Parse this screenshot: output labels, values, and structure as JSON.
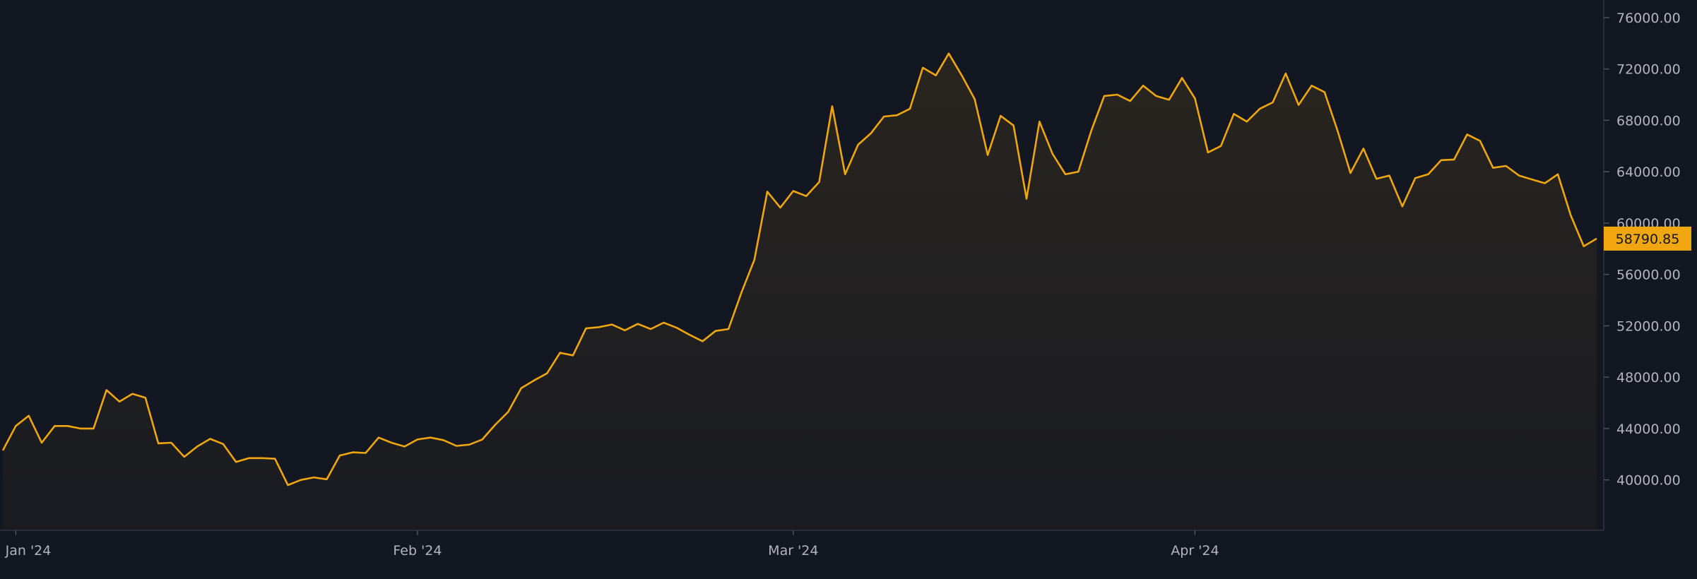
{
  "colors": {
    "background": "#131722",
    "line": "#f0a60f",
    "axis": "#2a2e39",
    "tick_text": "#b2b5be",
    "price_badge_bg": "#f0a60f",
    "price_badge_text": "#131722"
  },
  "chart_data": {
    "type": "area",
    "x": [
      "2023-12-31",
      "2024-01-01",
      "2024-01-02",
      "2024-01-03",
      "2024-01-04",
      "2024-01-05",
      "2024-01-06",
      "2024-01-07",
      "2024-01-08",
      "2024-01-09",
      "2024-01-10",
      "2024-01-11",
      "2024-01-12",
      "2024-01-13",
      "2024-01-14",
      "2024-01-15",
      "2024-01-16",
      "2024-01-17",
      "2024-01-18",
      "2024-01-19",
      "2024-01-20",
      "2024-01-21",
      "2024-01-22",
      "2024-01-23",
      "2024-01-24",
      "2024-01-25",
      "2024-01-26",
      "2024-01-27",
      "2024-01-28",
      "2024-01-29",
      "2024-01-30",
      "2024-01-31",
      "2024-02-01",
      "2024-02-02",
      "2024-02-03",
      "2024-02-04",
      "2024-02-05",
      "2024-02-06",
      "2024-02-07",
      "2024-02-08",
      "2024-02-09",
      "2024-02-10",
      "2024-02-11",
      "2024-02-12",
      "2024-02-13",
      "2024-02-14",
      "2024-02-15",
      "2024-02-16",
      "2024-02-17",
      "2024-02-18",
      "2024-02-19",
      "2024-02-20",
      "2024-02-21",
      "2024-02-22",
      "2024-02-23",
      "2024-02-24",
      "2024-02-25",
      "2024-02-26",
      "2024-02-27",
      "2024-02-28",
      "2024-02-29",
      "2024-03-01",
      "2024-03-02",
      "2024-03-03",
      "2024-03-04",
      "2024-03-05",
      "2024-03-06",
      "2024-03-07",
      "2024-03-08",
      "2024-03-09",
      "2024-03-10",
      "2024-03-11",
      "2024-03-12",
      "2024-03-13",
      "2024-03-14",
      "2024-03-15",
      "2024-03-16",
      "2024-03-17",
      "2024-03-18",
      "2024-03-19",
      "2024-03-20",
      "2024-03-21",
      "2024-03-22",
      "2024-03-23",
      "2024-03-24",
      "2024-03-25",
      "2024-03-26",
      "2024-03-27",
      "2024-03-28",
      "2024-03-29",
      "2024-03-30",
      "2024-03-31",
      "2024-04-01",
      "2024-04-02",
      "2024-04-03",
      "2024-04-04",
      "2024-04-05",
      "2024-04-06",
      "2024-04-07",
      "2024-04-08",
      "2024-04-09",
      "2024-04-10",
      "2024-04-11",
      "2024-04-12",
      "2024-04-13",
      "2024-04-14",
      "2024-04-15",
      "2024-04-16",
      "2024-04-17",
      "2024-04-18",
      "2024-04-19",
      "2024-04-20",
      "2024-04-21",
      "2024-04-22",
      "2024-04-23",
      "2024-04-24",
      "2024-04-25",
      "2024-04-26",
      "2024-04-27",
      "2024-04-28",
      "2024-04-29",
      "2024-04-30",
      "2024-05-01",
      "2024-05-02"
    ],
    "series": [
      {
        "values": [
          42300,
          44200,
          45000,
          42900,
          44200,
          44200,
          44000,
          44000,
          47000,
          46100,
          46700,
          46400,
          42850,
          42900,
          41800,
          42600,
          43200,
          42800,
          41400,
          41700,
          41700,
          41650,
          39600,
          40000,
          40200,
          40050,
          41900,
          42150,
          42100,
          43300,
          42900,
          42600,
          43150,
          43300,
          43100,
          42650,
          42750,
          43150,
          44300,
          45300,
          47150,
          47750,
          48300,
          49900,
          49700,
          51800,
          51900,
          52100,
          51650,
          52150,
          51750,
          52250,
          51850,
          51300,
          50800,
          51600,
          51750,
          54600,
          57150,
          62450,
          61200,
          62500,
          62100,
          63200,
          69100,
          63800,
          66100,
          67000,
          68300,
          68400,
          68900,
          72100,
          71500,
          73200,
          71500,
          69650,
          65300,
          68350,
          67600,
          61900,
          67900,
          65400,
          63800,
          64000,
          67200,
          69900,
          70000,
          69500,
          70700,
          69900,
          69600,
          71300,
          69700,
          65500,
          66000,
          68500,
          67900,
          68900,
          69400,
          71650,
          69200,
          70700,
          70200,
          67200,
          63900,
          65800,
          63450,
          63700,
          61300,
          63500,
          63800,
          64900,
          64950,
          66900,
          66400,
          64300,
          64450,
          63700,
          63400,
          63100,
          63800,
          60600,
          58200,
          58790.85
        ]
      }
    ],
    "x_tick_labels": [
      "Jan '24",
      "Feb '24",
      "Mar '24",
      "Apr '24"
    ],
    "x_tick_dates": [
      "2024-01-01",
      "2024-02-01",
      "2024-03-01",
      "2024-04-01"
    ],
    "y_ticks": [
      40000,
      44000,
      48000,
      52000,
      56000,
      60000,
      64000,
      68000,
      72000,
      76000
    ],
    "y_tick_labels": [
      "40000.00",
      "44000.00",
      "48000.00",
      "52000.00",
      "56000.00",
      "60000.00",
      "64000.00",
      "68000.00",
      "72000.00",
      "76000.00"
    ],
    "ylim": [
      36080,
      77370
    ],
    "last_price": 58790.85,
    "last_price_label": "58790.85",
    "grid": false,
    "legend": "none"
  }
}
